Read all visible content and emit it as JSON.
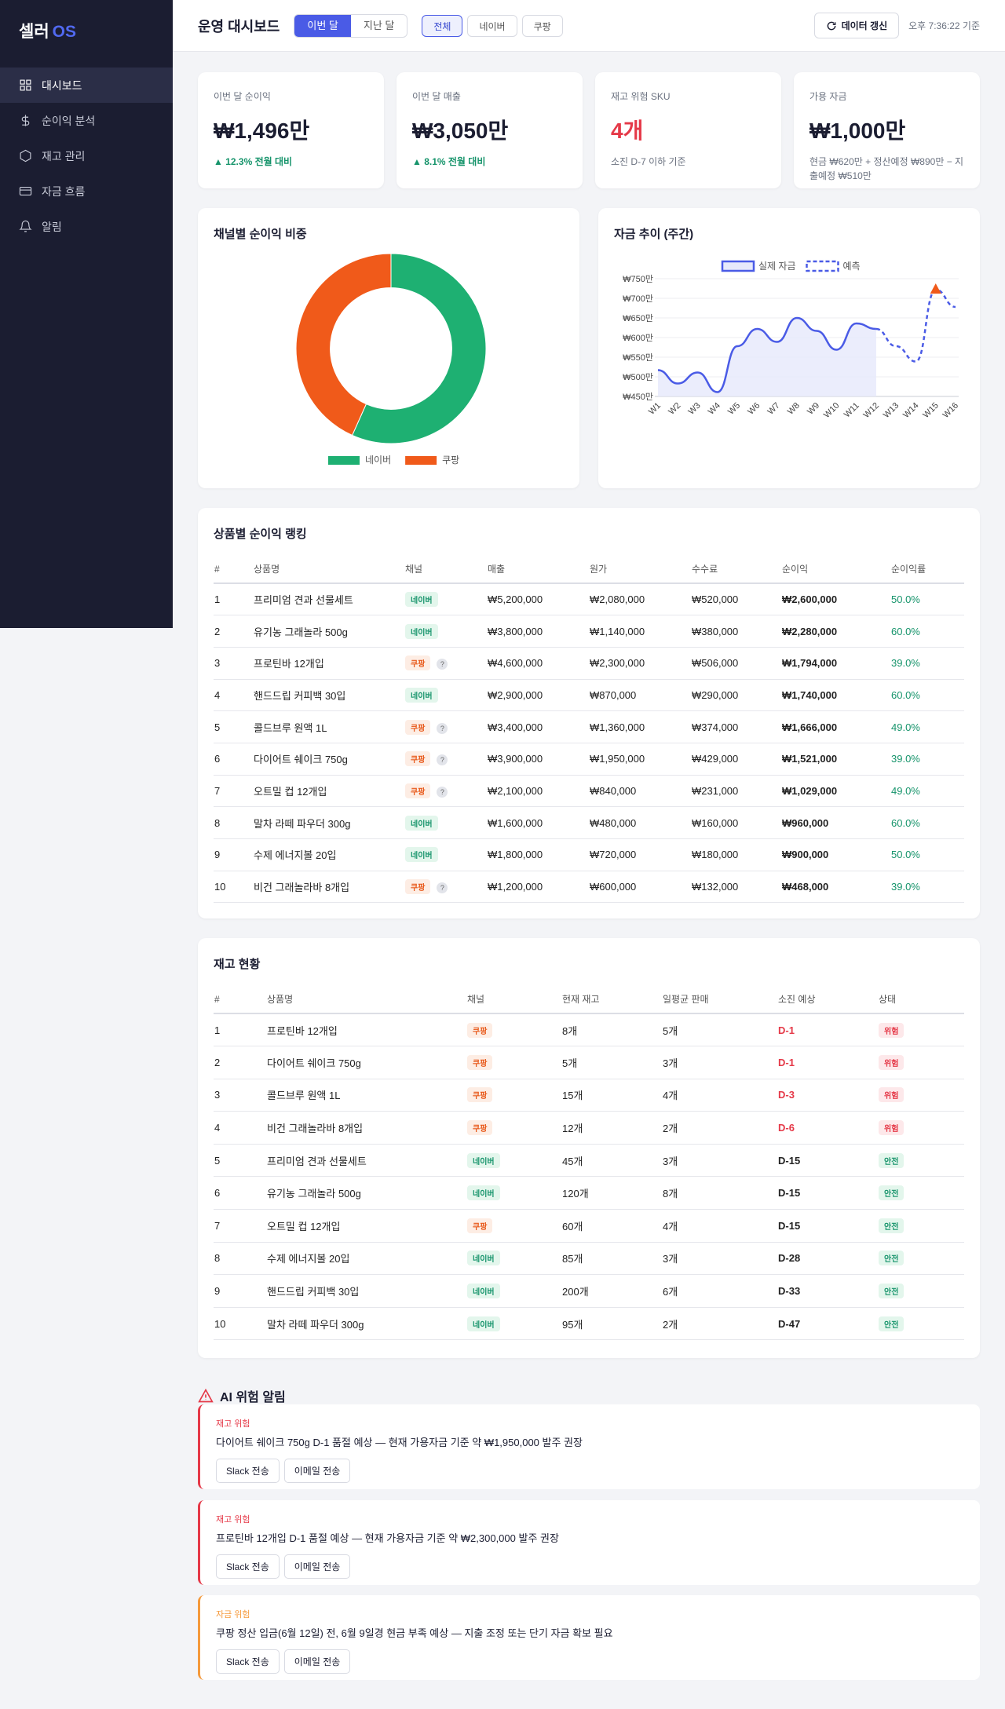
{
  "sidebar": {
    "logo": {
      "main": "셀러",
      "accent": "OS"
    },
    "nav": [
      "대시보드",
      "순이익 분석",
      "재고 관리",
      "자금 흐름",
      "알림"
    ],
    "active": 0
  },
  "header": {
    "title": "운영 대시보드",
    "periods": [
      "이번 달",
      "지난 달"
    ],
    "period_active": 0,
    "channels": [
      "전체",
      "네이버",
      "쿠팡"
    ],
    "channel_active": 0,
    "refresh": "데이터 갱신",
    "time": "오후 7:36:22 기준"
  },
  "kpis": [
    {
      "label": "이번 달 순이익",
      "value": "₩1,496만",
      "note": "▲ 12.3% 전월 대비",
      "color": "#1b1d31",
      "note_color": "#16946b"
    },
    {
      "label": "이번 달 매출",
      "value": "₩3,050만",
      "note": "▲ 8.1% 전월 대비",
      "color": "#1b1d31",
      "note_color": "#16946b"
    },
    {
      "label": "재고 위험 SKU",
      "value": "4개",
      "note": "소진 D-7 이하 기준",
      "color": "#e53948",
      "note_color": "#6b7280"
    },
    {
      "label": "가용 자금",
      "value": "₩1,000만",
      "note": "현금 ₩620만 + 정산예정 ₩890만 − 지출예정 ₩510만",
      "color": "#1b1d31",
      "note_color": "#6b7280"
    }
  ],
  "chart_data": [
    {
      "type": "pie",
      "title": "채널별 순이익 비중",
      "categories": [
        "네이버",
        "쿠팡"
      ],
      "values": [
        8480000,
        6478000
      ],
      "colors": [
        "#1eb072",
        "#f05a1a"
      ],
      "hole": 0.64
    },
    {
      "type": "line",
      "title": "자금 추이 (주간)",
      "categories": [
        "W1",
        "W2",
        "W3",
        "W4",
        "W5",
        "W6",
        "W7",
        "W8",
        "W9",
        "W10",
        "W11",
        "W12",
        "W13",
        "W14",
        "W15",
        "W16"
      ],
      "series": [
        {
          "name": "실제 자금",
          "color": "#4a5be6",
          "fill": "#e6e9fb",
          "dashed": false,
          "values": [
            517,
            483,
            511,
            461,
            578,
            622,
            589,
            650,
            617,
            569,
            636,
            622,
            null,
            null,
            null,
            null
          ]
        },
        {
          "name": "예측",
          "color": "#4a5be6",
          "dashed": true,
          "marker_color": "#f05a1a",
          "values": [
            null,
            null,
            null,
            null,
            null,
            null,
            null,
            null,
            null,
            null,
            null,
            622,
            578,
            539,
            722,
            678
          ]
        }
      ],
      "ylim": [
        450,
        750
      ],
      "yticks": [
        {
          "value": 450,
          "label": "₩450만"
        },
        {
          "value": 500,
          "label": "₩500만"
        },
        {
          "value": 550,
          "label": "₩550만"
        },
        {
          "value": 600,
          "label": "₩600만"
        },
        {
          "value": 650,
          "label": "₩650만"
        },
        {
          "value": 700,
          "label": "₩700만"
        },
        {
          "value": 750,
          "label": "₩750만"
        }
      ],
      "grid": true
    }
  ],
  "channels": [
    {
      "name": "네이버",
      "color": "#16946b",
      "bg": "#e3f6ec"
    },
    {
      "name": "쿠팡",
      "color": "#e8591a",
      "bg": "#fdede4",
      "hint": "?"
    }
  ],
  "ranking": {
    "title": "상품별 순이익 랭킹",
    "columns": [
      "#",
      "상품명",
      "채널",
      "매출",
      "원가",
      "수수료",
      "순이익",
      "순이익률"
    ],
    "rows": [
      [
        "1",
        "프리미엄 견과 선물세트",
        "네이버",
        "₩5,200,000",
        "₩2,080,000",
        "₩520,000",
        "₩2,600,000",
        "50.0%"
      ],
      [
        "2",
        "유기농 그래놀라 500g",
        "네이버",
        "₩3,800,000",
        "₩1,140,000",
        "₩380,000",
        "₩2,280,000",
        "60.0%"
      ],
      [
        "3",
        "프로틴바 12개입",
        "쿠팡",
        "₩4,600,000",
        "₩2,300,000",
        "₩506,000",
        "₩1,794,000",
        "39.0%"
      ],
      [
        "4",
        "핸드드립 커피백 30입",
        "네이버",
        "₩2,900,000",
        "₩870,000",
        "₩290,000",
        "₩1,740,000",
        "60.0%"
      ],
      [
        "5",
        "콜드브루 원액 1L",
        "쿠팡",
        "₩3,400,000",
        "₩1,360,000",
        "₩374,000",
        "₩1,666,000",
        "49.0%"
      ],
      [
        "6",
        "다이어트 쉐이크 750g",
        "쿠팡",
        "₩3,900,000",
        "₩1,950,000",
        "₩429,000",
        "₩1,521,000",
        "39.0%"
      ],
      [
        "7",
        "오트밀 컵 12개입",
        "쿠팡",
        "₩2,100,000",
        "₩840,000",
        "₩231,000",
        "₩1,029,000",
        "49.0%"
      ],
      [
        "8",
        "말차 라떼 파우더 300g",
        "네이버",
        "₩1,600,000",
        "₩480,000",
        "₩160,000",
        "₩960,000",
        "60.0%"
      ],
      [
        "9",
        "수제 에너지볼 20입",
        "네이버",
        "₩1,800,000",
        "₩720,000",
        "₩180,000",
        "₩900,000",
        "50.0%"
      ],
      [
        "10",
        "비건 그래놀라바 8개입",
        "쿠팡",
        "₩1,200,000",
        "₩600,000",
        "₩132,000",
        "₩468,000",
        "39.0%"
      ]
    ]
  },
  "statuses": [
    {
      "name": "위험",
      "color": "#e53948",
      "bg": "#fde8ea",
      "danger": true
    },
    {
      "name": "안전",
      "color": "#16946b",
      "bg": "#e3f6ec",
      "danger": false
    }
  ],
  "inventory": {
    "title": "재고 현황",
    "columns": [
      "#",
      "상품명",
      "채널",
      "현재 재고",
      "일평균 판매",
      "소진 예상",
      "상태"
    ],
    "rows": [
      [
        "1",
        "프로틴바 12개입",
        "쿠팡",
        "8개",
        "5개",
        "D-1",
        "위험"
      ],
      [
        "2",
        "다이어트 쉐이크 750g",
        "쿠팡",
        "5개",
        "3개",
        "D-1",
        "위험"
      ],
      [
        "3",
        "콜드브루 원액 1L",
        "쿠팡",
        "15개",
        "4개",
        "D-3",
        "위험"
      ],
      [
        "4",
        "비건 그래놀라바 8개입",
        "쿠팡",
        "12개",
        "2개",
        "D-6",
        "위험"
      ],
      [
        "5",
        "프리미엄 견과 선물세트",
        "네이버",
        "45개",
        "3개",
        "D-15",
        "안전"
      ],
      [
        "6",
        "유기농 그래놀라 500g",
        "네이버",
        "120개",
        "8개",
        "D-15",
        "안전"
      ],
      [
        "7",
        "오트밀 컵 12개입",
        "쿠팡",
        "60개",
        "4개",
        "D-15",
        "안전"
      ],
      [
        "8",
        "수제 에너지볼 20입",
        "네이버",
        "85개",
        "3개",
        "D-28",
        "안전"
      ],
      [
        "9",
        "핸드드립 커피백 30입",
        "네이버",
        "200개",
        "6개",
        "D-33",
        "안전"
      ],
      [
        "10",
        "말차 라떼 파우더 300g",
        "네이버",
        "95개",
        "2개",
        "D-47",
        "안전"
      ]
    ]
  },
  "alerts": {
    "title": "AI 위험 알림",
    "buttons": [
      "Slack 전송",
      "이메일 전송"
    ],
    "items": [
      {
        "tag": "재고 위험",
        "message": "다이어트 쉐이크 750g D-1 품절 예상 — 현재 가용자금 기준 약 ₩1,950,000 발주 권장",
        "color": "#e53948"
      },
      {
        "tag": "재고 위험",
        "message": "프로틴바 12개입 D-1 품절 예상 — 현재 가용자금 기준 약 ₩2,300,000 발주 권장",
        "color": "#e53948"
      },
      {
        "tag": "자금 위험",
        "message": "쿠팡 정산 입금(6월 12일) 전, 6월 9일경 현금 부족 예상 — 지출 조정 또는 단기 자금 확보 필요",
        "color": "#f59a3c"
      }
    ]
  }
}
